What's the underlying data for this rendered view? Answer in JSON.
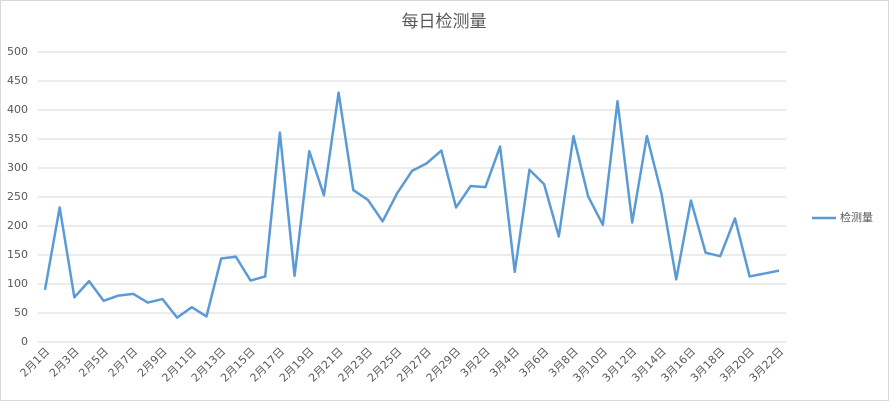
{
  "chart_data": {
    "type": "line",
    "title": "每日检测量",
    "categories": [
      "2月1日",
      null,
      "2月3日",
      null,
      "2月5日",
      null,
      "2月7日",
      null,
      "2月9日",
      null,
      "2月11日",
      null,
      "2月13日",
      null,
      "2月15日",
      null,
      "2月17日",
      null,
      "2月19日",
      null,
      "2月21日",
      null,
      "2月23日",
      null,
      "2月25日",
      null,
      "2月27日",
      null,
      "2月29日",
      null,
      "3月2日",
      null,
      "3月4日",
      null,
      "3月6日",
      null,
      "3月8日",
      null,
      "3月10日",
      null,
      "3月12日",
      null,
      "3月14日",
      null,
      "3月16日",
      null,
      "3月18日",
      null,
      "3月20日",
      null,
      "3月22日"
    ],
    "series": [
      {
        "name": "检测量",
        "color": "#5b9bd5",
        "values": [
          90,
          232,
          77,
          105,
          71,
          80,
          83,
          68,
          74,
          42,
          60,
          44,
          144,
          147,
          106,
          113,
          361,
          114,
          329,
          253,
          430,
          262,
          245,
          208,
          257,
          295,
          308,
          330,
          232,
          269,
          267,
          337,
          121,
          297,
          272,
          182,
          355,
          251,
          202,
          415,
          206,
          355,
          255,
          108,
          244,
          154,
          148,
          213,
          113,
          118,
          123
        ]
      }
    ],
    "ylim": [
      0,
      500
    ],
    "yticks": [
      0,
      50,
      100,
      150,
      200,
      250,
      300,
      350,
      400,
      450,
      500
    ],
    "grid": true,
    "legend": "right"
  }
}
